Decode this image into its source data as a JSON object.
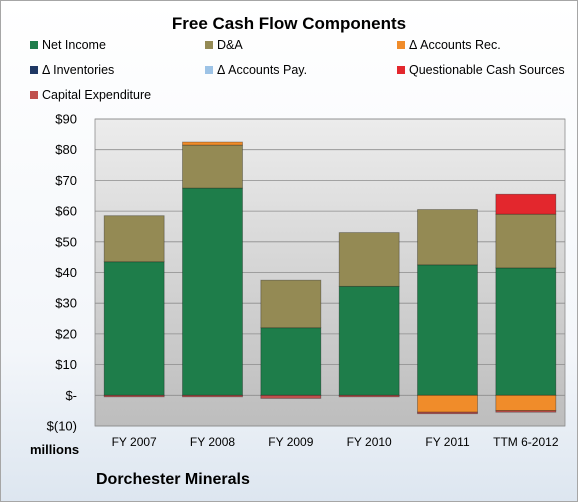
{
  "chart_data": {
    "type": "bar",
    "stacked": true,
    "title": "Free Cash Flow Components",
    "categories": [
      "FY 2007",
      "FY 2008",
      "FY 2009",
      "FY 2010",
      "FY 2011",
      "TTM 6-2012"
    ],
    "series": [
      {
        "name": "Net Income",
        "color": "#1e7d4a",
        "values": [
          43.5,
          67.5,
          22,
          35.5,
          42.5,
          41.5
        ]
      },
      {
        "name": "D&A",
        "color": "#948a54",
        "values": [
          15,
          14,
          15.5,
          17.5,
          18,
          17.5
        ]
      },
      {
        "name": "Δ Accounts Rec.",
        "color": "#f08c2a",
        "values": [
          0,
          1,
          0,
          0,
          -5.5,
          -5
        ]
      },
      {
        "name": "Δ Inventories",
        "color": "#1f3864",
        "values": [
          0,
          0,
          0,
          0,
          0,
          0
        ]
      },
      {
        "name": "Δ Accounts Pay.",
        "color": "#9dc3e6",
        "values": [
          0,
          0,
          0,
          0,
          0,
          0
        ]
      },
      {
        "name": "Questionable Cash Sources",
        "color": "#e3272d",
        "values": [
          0,
          0,
          0,
          0,
          0,
          6.5
        ]
      },
      {
        "name": "Capital Expenditure",
        "color": "#c0504d",
        "values": [
          -0.5,
          -0.5,
          -1,
          -0.5,
          -0.5,
          -0.5
        ]
      }
    ],
    "yticks": [
      "$90",
      "$80",
      "$70",
      "$60",
      "$50",
      "$40",
      "$30",
      "$20",
      "$10",
      "$-",
      "$(10)"
    ],
    "ylim": [
      -10,
      90
    ],
    "ylabel": "millions",
    "grid": true,
    "legend_position": "top"
  },
  "company": "Dorchester Minerals"
}
